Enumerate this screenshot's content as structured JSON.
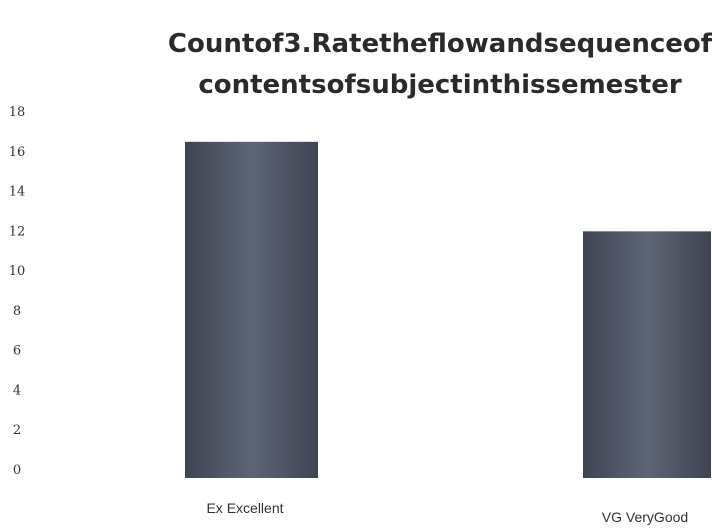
{
  "chart_data": {
    "type": "bar",
    "title_lines": [
      "Countof3.Ratetheflowandsequenceof",
      "contentsofsubjectinthissemester"
    ],
    "categories": [
      "Ex Excellent",
      "VG VeryGood"
    ],
    "values": [
      16.5,
      12
    ],
    "ylim": [
      0,
      18
    ],
    "yticks": [
      "0",
      "2",
      "4",
      "6",
      "8",
      "10",
      "12",
      "14",
      "16",
      "18"
    ],
    "xlabel": "",
    "ylabel": "",
    "grid": false,
    "legend": "none",
    "bar_color": "#525968"
  }
}
